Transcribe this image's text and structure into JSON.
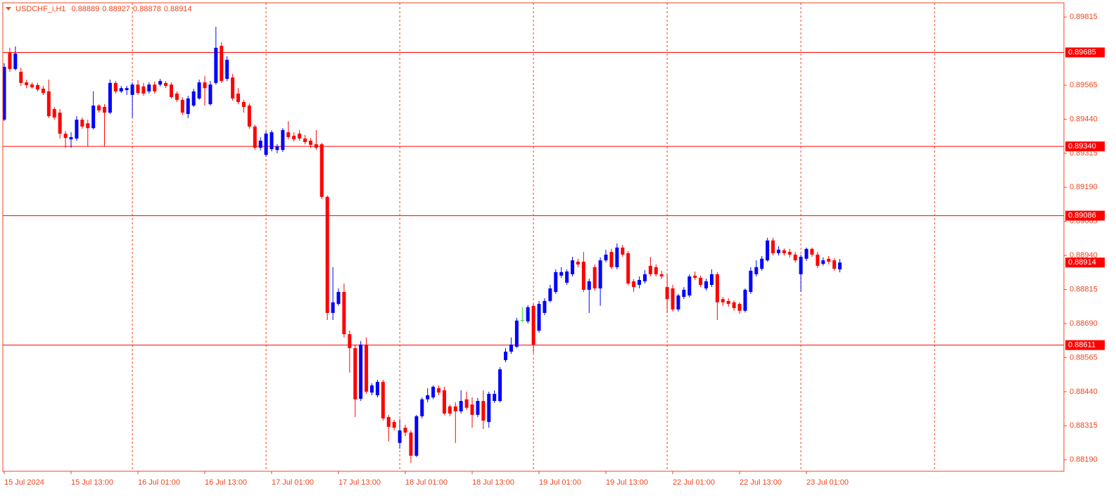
{
  "chart_data": {
    "type": "candlestick",
    "title": "USDCHF_i,H1",
    "header_values": [
      0.88889,
      0.88927,
      0.88878,
      0.88914
    ],
    "categories": [
      "15 Jul 2024",
      null,
      null,
      null,
      null,
      null,
      null,
      null,
      null,
      null,
      null,
      null,
      "15 Jul 13:00",
      null,
      null,
      null,
      null,
      null,
      null,
      null,
      null,
      null,
      null,
      null,
      "16 Jul 01:00",
      null,
      null,
      null,
      null,
      null,
      null,
      null,
      null,
      null,
      null,
      null,
      "16 Jul 13:00",
      null,
      null,
      null,
      null,
      null,
      null,
      null,
      null,
      null,
      null,
      null,
      "17 Jul 01:00",
      null,
      null,
      null,
      null,
      null,
      null,
      null,
      null,
      null,
      null,
      null,
      "17 Jul 13:00",
      null,
      null,
      null,
      null,
      null,
      null,
      null,
      null,
      null,
      null,
      null,
      "18 Jul 01:00",
      null,
      null,
      null,
      null,
      null,
      null,
      null,
      null,
      null,
      null,
      null,
      "18 Jul 13:00",
      null,
      null,
      null,
      null,
      null,
      null,
      null,
      null,
      null,
      null,
      null,
      "19 Jul 01:00",
      null,
      null,
      null,
      null,
      null,
      null,
      null,
      null,
      null,
      null,
      null,
      "19 Jul 13:00",
      null,
      null,
      null,
      null,
      null,
      null,
      null,
      null,
      null,
      null,
      null,
      "22 Jul 01:00",
      null,
      null,
      null,
      null,
      null,
      null,
      null,
      null,
      null,
      null,
      null,
      "22 Jul 13:00",
      null,
      null,
      null,
      null,
      null,
      null,
      null,
      null,
      null,
      null,
      null,
      "23 Jul 01:00",
      null,
      null,
      null,
      null,
      null,
      null
    ],
    "open": [
      0.89438,
      0.89683,
      0.89624,
      0.89614,
      0.89575,
      0.89567,
      0.89565,
      0.89552,
      0.89542,
      0.89477,
      0.89464,
      0.89387,
      0.89366,
      0.89369,
      0.89438,
      0.89425,
      0.89407,
      0.8949,
      0.89485,
      0.89464,
      0.89573,
      0.89542,
      0.89547,
      0.89529,
      0.89567,
      0.8956,
      0.89542,
      0.89567,
      0.89567,
      0.89573,
      0.89567,
      0.89534,
      0.89511,
      0.89459,
      0.8949,
      0.89516,
      0.89575,
      0.89495,
      0.89573,
      0.89709,
      0.89588,
      0.89593,
      0.89534,
      0.89503,
      0.8949,
      0.89413,
      0.89335,
      0.89309,
      0.8933,
      0.89327,
      0.89327,
      0.89392,
      0.89379,
      0.89387,
      0.89369,
      0.89361,
      0.89348,
      0.89348,
      0.89155,
      0.88729,
      0.88762,
      0.88806,
      0.88651,
      0.886,
      0.88414,
      0.88613,
      0.88437,
      0.88427,
      0.88476,
      0.88347,
      0.88329,
      0.88252,
      0.88308,
      0.8829,
      0.88205,
      0.8835,
      0.88412,
      0.88419,
      0.88453,
      0.88445,
      0.88386,
      0.88386,
      0.88368,
      0.88412,
      0.88393,
      0.88355,
      0.88406,
      0.88329,
      0.88406,
      0.88406,
      0.88556,
      0.88587,
      0.88605,
      0.88703,
      0.88698,
      0.88755,
      0.88664,
      0.88729,
      0.88773,
      0.88806,
      0.88866,
      0.8884,
      0.88871,
      0.88917,
      0.88917,
      0.88814,
      0.88897,
      0.88819,
      0.88922,
      0.88953,
      0.88897,
      0.88969,
      0.88948,
      0.88845,
      0.88832,
      0.88845,
      0.88902,
      0.88897,
      0.88871,
      0.88824,
      0.88819,
      0.88742,
      0.88788,
      0.88793,
      0.88866,
      0.88858,
      0.88819,
      0.88832,
      0.88871,
      0.8878,
      0.88773,
      0.88768,
      0.88762,
      0.88737,
      0.88806,
      0.88871,
      0.88891,
      0.88922,
      0.88995,
      0.88948,
      0.88959,
      0.88953,
      0.88943,
      0.88871,
      0.88928,
      0.88964,
      0.88943,
      0.88909,
      0.88928,
      0.88922,
      0.88889
    ],
    "high": [
      0.89645,
      0.89702,
      0.89707,
      0.89629,
      0.89585,
      0.89575,
      0.89573,
      0.89562,
      0.89585,
      0.89485,
      0.89477,
      0.89397,
      0.89392,
      0.89451,
      0.89446,
      0.89438,
      0.89542,
      0.89495,
      0.89495,
      0.89585,
      0.8958,
      0.89562,
      0.89562,
      0.89575,
      0.89583,
      0.89573,
      0.89575,
      0.89578,
      0.89588,
      0.8958,
      0.89575,
      0.89542,
      0.89521,
      0.89526,
      0.89552,
      0.89585,
      0.89598,
      0.8958,
      0.89779,
      0.89722,
      0.89671,
      0.89606,
      0.89554,
      0.89511,
      0.89498,
      0.8942,
      0.89374,
      0.89395,
      0.894,
      0.89348,
      0.89407,
      0.89433,
      0.89392,
      0.894,
      0.89382,
      0.89371,
      0.894,
      0.89353,
      0.8916,
      0.88897,
      0.88819,
      0.88837,
      0.88664,
      0.88613,
      0.88626,
      0.88639,
      0.88471,
      0.88484,
      0.88484,
      0.88355,
      0.88337,
      0.88339,
      0.88319,
      0.88298,
      0.88355,
      0.88419,
      0.88453,
      0.88463,
      0.88463,
      0.88458,
      0.88393,
      0.88401,
      0.88445,
      0.8844,
      0.88419,
      0.88417,
      0.88445,
      0.8844,
      0.88445,
      0.8853,
      0.886,
      0.88639,
      0.88711,
      0.8875,
      0.88757,
      0.88762,
      0.88773,
      0.88783,
      0.88832,
      0.88889,
      0.88897,
      0.88889,
      0.88935,
      0.88928,
      0.88953,
      0.88855,
      0.88907,
      0.88933,
      0.88961,
      0.88964,
      0.88984,
      0.88979,
      0.88956,
      0.88853,
      0.88863,
      0.88886,
      0.88935,
      0.88907,
      0.88884,
      0.88871,
      0.88832,
      0.88799,
      0.88824,
      0.88871,
      0.88881,
      0.88866,
      0.88855,
      0.88889,
      0.88879,
      0.88788,
      0.88783,
      0.88775,
      0.88768,
      0.88819,
      0.88897,
      0.88922,
      0.88938,
      0.89005,
      0.89005,
      0.88974,
      0.88966,
      0.88964,
      0.88953,
      0.88943,
      0.88969,
      0.88969,
      0.88953,
      0.88933,
      0.88938,
      0.8893,
      0.88927
    ],
    "low": [
      0.89433,
      0.89614,
      0.89619,
      0.89562,
      0.89554,
      0.89552,
      0.89542,
      0.89529,
      0.89444,
      0.89438,
      0.89369,
      0.89335,
      0.89335,
      0.89361,
      0.89405,
      0.8934,
      0.89402,
      0.89464,
      0.8934,
      0.89459,
      0.89534,
      0.89536,
      0.89529,
      0.89446,
      0.89529,
      0.89526,
      0.89534,
      0.89534,
      0.8956,
      0.89554,
      0.89516,
      0.89503,
      0.89456,
      0.89444,
      0.89485,
      0.89511,
      0.8949,
      0.8949,
      0.89567,
      0.89573,
      0.8958,
      0.89508,
      0.89495,
      0.89464,
      0.89405,
      0.89327,
      0.89325,
      0.89302,
      0.89322,
      0.89315,
      0.8932,
      0.89366,
      0.89358,
      0.89361,
      0.89348,
      0.89335,
      0.89327,
      0.89147,
      0.88703,
      0.88703,
      0.88755,
      0.88639,
      0.8851,
      0.88347,
      0.88406,
      0.88432,
      0.88427,
      0.88419,
      0.88334,
      0.88257,
      0.88298,
      0.88231,
      0.88277,
      0.88179,
      0.882,
      0.88342,
      0.88401,
      0.88412,
      0.88427,
      0.88355,
      0.8835,
      0.88252,
      0.8836,
      0.88373,
      0.88308,
      0.88347,
      0.88303,
      0.88308,
      0.88399,
      0.88401,
      0.88548,
      0.88579,
      0.886,
      0.88695,
      0.8869,
      0.88582,
      0.88657,
      0.88721,
      0.88768,
      0.88799,
      0.88858,
      0.88832,
      0.88863,
      0.88897,
      0.88806,
      0.88729,
      0.88811,
      0.88755,
      0.88915,
      0.88889,
      0.88889,
      0.88935,
      0.8883,
      0.88806,
      0.88819,
      0.88837,
      0.88863,
      0.88863,
      0.88853,
      0.88729,
      0.88734,
      0.88734,
      0.8878,
      0.88786,
      0.8885,
      0.88824,
      0.88811,
      0.88824,
      0.88703,
      0.88755,
      0.88752,
      0.88737,
      0.88726,
      0.88731,
      0.88799,
      0.88863,
      0.88884,
      0.88917,
      0.8894,
      0.8894,
      0.8894,
      0.88933,
      0.88915,
      0.88806,
      0.8892,
      0.88935,
      0.88894,
      0.88902,
      0.88907,
      0.88884,
      0.88878
    ],
    "close": [
      0.89632,
      0.89624,
      0.89681,
      0.89573,
      0.89565,
      0.89557,
      0.89549,
      0.89536,
      0.89451,
      0.89446,
      0.89387,
      0.89371,
      0.89374,
      0.89438,
      0.89413,
      0.89407,
      0.8949,
      0.89472,
      0.89464,
      0.89573,
      0.89542,
      0.89554,
      0.89554,
      0.89567,
      0.89536,
      0.89534,
      0.89567,
      0.89542,
      0.8958,
      0.89562,
      0.89521,
      0.89511,
      0.89464,
      0.89516,
      0.89542,
      0.89575,
      0.89554,
      0.89567,
      0.89702,
      0.8958,
      0.89658,
      0.89516,
      0.89503,
      0.89485,
      0.89413,
      0.89335,
      0.89361,
      0.89387,
      0.89392,
      0.8934,
      0.894,
      0.89374,
      0.89366,
      0.89369,
      0.89356,
      0.89346,
      0.89335,
      0.89155,
      0.88729,
      0.88768,
      0.88806,
      0.88651,
      0.886,
      0.88412,
      0.88613,
      0.8844,
      0.88463,
      0.88476,
      0.88342,
      0.88311,
      0.88308,
      0.88298,
      0.8829,
      0.88205,
      0.8835,
      0.88412,
      0.88427,
      0.88458,
      0.88437,
      0.8836,
      0.8836,
      0.88368,
      0.88406,
      0.88381,
      0.88355,
      0.88406,
      0.88334,
      0.88432,
      0.88432,
      0.88522,
      0.88587,
      0.88613,
      0.88701,
      0.88703,
      0.8875,
      0.88613,
      0.88762,
      0.88773,
      0.88819,
      0.88879,
      0.88879,
      0.88881,
      0.88922,
      0.88907,
      0.88814,
      0.88845,
      0.88819,
      0.88922,
      0.88943,
      0.88897,
      0.88969,
      0.88943,
      0.88837,
      0.88824,
      0.8885,
      0.88871,
      0.88871,
      0.88871,
      0.88863,
      0.8878,
      0.88742,
      0.88793,
      0.88814,
      0.88863,
      0.88858,
      0.88832,
      0.88845,
      0.88871,
      0.88768,
      0.88768,
      0.88762,
      0.88747,
      0.88737,
      0.88814,
      0.88884,
      0.88897,
      0.88928,
      0.88995,
      0.88948,
      0.88961,
      0.88948,
      0.88943,
      0.88922,
      0.88935,
      0.88964,
      0.88943,
      0.88902,
      0.88922,
      0.88917,
      0.88891,
      0.88914
    ],
    "ylim": [
      0.88148,
      0.89867
    ],
    "yticks": [
      0.89815,
      0.89565,
      {
        "value": 0.8944,
        "label": "0.89440"
      },
      0.89315,
      {
        "value": 0.8919,
        "label": "0.89190"
      },
      0.89065,
      {
        "value": 0.8894,
        "label": "0.88940"
      },
      0.88815,
      {
        "value": 0.8869,
        "label": "0.88690"
      },
      0.88565,
      {
        "value": 0.8844,
        "label": "0.88440"
      },
      0.88315,
      {
        "value": 0.8819,
        "label": "0.88190"
      }
    ],
    "levels": [
      0.89685,
      {
        "value": 0.8934,
        "label": "0.89340"
      },
      0.89086,
      0.88611
    ],
    "last_price": 0.88914,
    "grid": true,
    "colors": {
      "up": "#0000ff",
      "down": "#ff0000",
      "doji": "#22dd22",
      "level": "#ff0000",
      "axis": "#f0441e"
    }
  }
}
